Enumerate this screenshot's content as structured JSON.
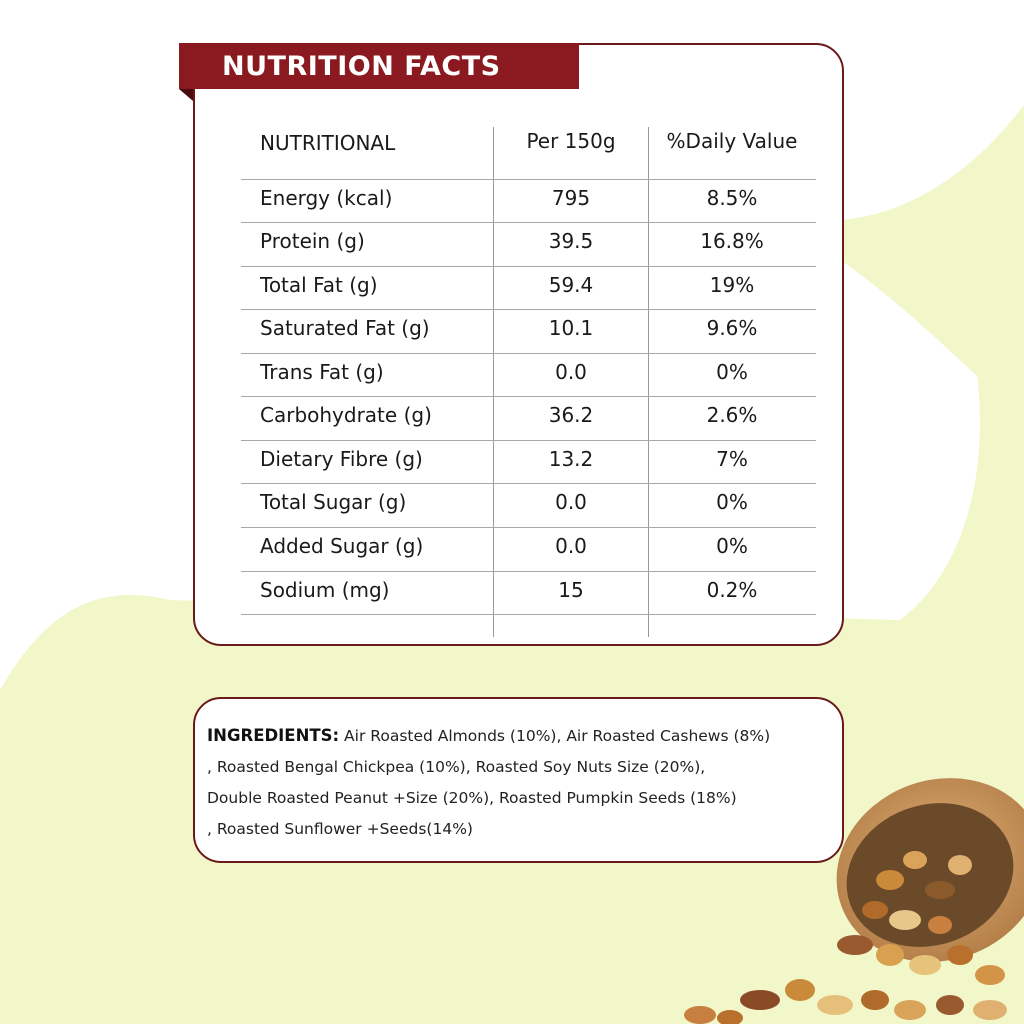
{
  "title": "NUTRITION FACTS",
  "table": {
    "headers": [
      "NUTRITIONAL",
      "Per 150g",
      "%Daily Value"
    ],
    "rows": [
      {
        "nutrient": "Energy (kcal)",
        "value": "795",
        "daily": "8.5%"
      },
      {
        "nutrient": "Protein (g)",
        "value": "39.5",
        "daily": "16.8%"
      },
      {
        "nutrient": "Total Fat (g)",
        "value": "59.4",
        "daily": "19%"
      },
      {
        "nutrient": "Saturated Fat (g)",
        "value": "10.1",
        "daily": "9.6%"
      },
      {
        "nutrient": "Trans Fat (g)",
        "value": "0.0",
        "daily": "0%"
      },
      {
        "nutrient": "Carbohydrate (g)",
        "value": "36.2",
        "daily": "2.6%"
      },
      {
        "nutrient": "Dietary Fibre (g)",
        "value": "13.2",
        "daily": "7%"
      },
      {
        "nutrient": "Total Sugar (g)",
        "value": "0.0",
        "daily": "0%"
      },
      {
        "nutrient": "Added Sugar (g)",
        "value": "0.0",
        "daily": "0%"
      },
      {
        "nutrient": "Sodium (mg)",
        "value": "15",
        "daily": "0.2%"
      }
    ]
  },
  "ingredients": {
    "label": "INGREDIENTS:",
    "lines": [
      " Air Roasted Almonds (10%), Air Roasted Cashews (8%)",
      ", Roasted Bengal Chickpea (10%), Roasted Soy Nuts Size (20%),",
      "Double Roasted Peanut +Size (20%), Roasted Pumpkin Seeds (18%)",
      ", Roasted Sunflower +Seeds(14%)"
    ]
  },
  "colors": {
    "banner": "#8a1a20",
    "card_border": "#6b1a1a",
    "background_blob": "#f1f7c9"
  },
  "image": {
    "icon": "nut-bowl-icon"
  }
}
